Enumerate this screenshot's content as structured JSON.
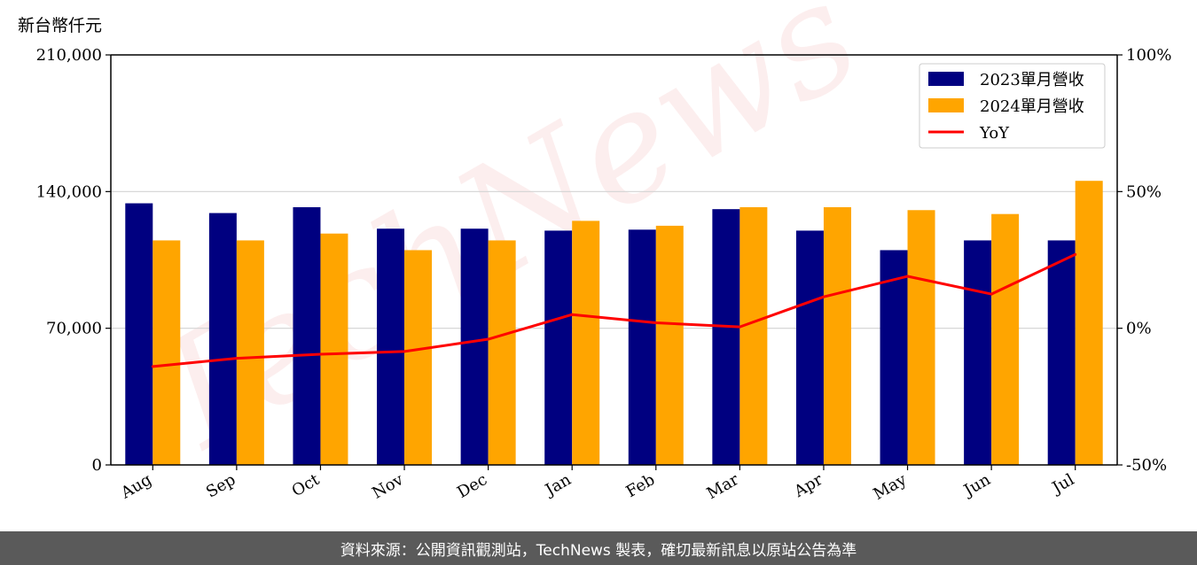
{
  "unit_label": "新台幣仟元",
  "watermark": "TechNews",
  "footer": "資料來源：公開資訊觀測站，TechNews 製表，確切最新訊息以原站公告為準",
  "colors": {
    "bar2023": "#000080",
    "bar2024": "#ffa500",
    "yoy": "#ff0000",
    "grid": "#d3d3d3",
    "footer_bg": "#5a5a5a"
  },
  "chart_data": {
    "type": "bar",
    "categories": [
      "Aug",
      "Sep",
      "Oct",
      "Nov",
      "Dec",
      "Jan",
      "Feb",
      "Mar",
      "Apr",
      "May",
      "Jun",
      "Jul"
    ],
    "series": [
      {
        "name": "2023單月營收",
        "values": [
          134000,
          129000,
          132000,
          121000,
          121000,
          120000,
          120500,
          131000,
          120000,
          110000,
          115000,
          115000
        ]
      },
      {
        "name": "2024單月營收",
        "values": [
          115000,
          115000,
          118500,
          110000,
          115000,
          125000,
          122500,
          132000,
          132000,
          130500,
          128500,
          145500
        ]
      }
    ],
    "line_series": {
      "name": "YoY",
      "values": [
        -14,
        -11,
        -9.5,
        -8.5,
        -4,
        5,
        2,
        0.5,
        11.5,
        19,
        12.5,
        27
      ]
    },
    "y_left": {
      "ylim": [
        0,
        210000
      ],
      "ticks": [
        "0",
        "70,000",
        "140,000",
        "210,000"
      ],
      "tick_values": [
        0,
        70000,
        140000,
        210000
      ]
    },
    "y_right": {
      "ylim": [
        -50,
        100
      ],
      "ticks": [
        "-50%",
        "0%",
        "50%",
        "100%"
      ],
      "tick_values": [
        -50,
        0,
        50,
        100
      ]
    },
    "grid": "horizontal",
    "legend_position": "top-right"
  }
}
